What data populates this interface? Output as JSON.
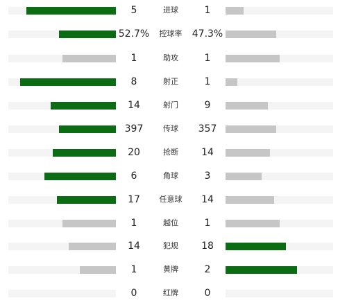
{
  "colors": {
    "win": "#0c6c14",
    "lose": "#c6c6c6",
    "track": "#f4f4f4"
  },
  "stats": [
    {
      "label": "进球",
      "home": "5",
      "away": "1",
      "home_value": 5,
      "away_value": 1
    },
    {
      "label": "控球率",
      "home": "52.7%",
      "away": "47.3%",
      "home_value": 52.7,
      "away_value": 47.3
    },
    {
      "label": "助攻",
      "home": "1",
      "away": "1",
      "home_value": 1,
      "away_value": 1
    },
    {
      "label": "射正",
      "home": "8",
      "away": "1",
      "home_value": 8,
      "away_value": 1
    },
    {
      "label": "射门",
      "home": "14",
      "away": "9",
      "home_value": 14,
      "away_value": 9
    },
    {
      "label": "传球",
      "home": "397",
      "away": "357",
      "home_value": 397,
      "away_value": 357
    },
    {
      "label": "抢断",
      "home": "20",
      "away": "14",
      "home_value": 20,
      "away_value": 14
    },
    {
      "label": "角球",
      "home": "6",
      "away": "3",
      "home_value": 6,
      "away_value": 3
    },
    {
      "label": "任意球",
      "home": "17",
      "away": "14",
      "home_value": 17,
      "away_value": 14
    },
    {
      "label": "越位",
      "home": "1",
      "away": "1",
      "home_value": 1,
      "away_value": 1
    },
    {
      "label": "犯规",
      "home": "14",
      "away": "18",
      "home_value": 14,
      "away_value": 18
    },
    {
      "label": "黄牌",
      "home": "1",
      "away": "2",
      "home_value": 1,
      "away_value": 2
    },
    {
      "label": "红牌",
      "home": "0",
      "away": "0",
      "home_value": 0,
      "away_value": 0
    }
  ]
}
